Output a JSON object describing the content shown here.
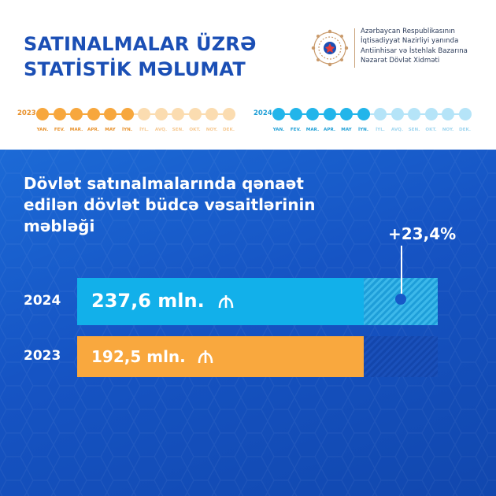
{
  "header": {
    "title_lines": [
      "SATINALMALAR ÜZRƏ",
      "STATİSTİK MƏLUMAT"
    ],
    "org_lines": [
      "Azərbaycan Respublikasının",
      "İqtisadiyyat Nazirliyi yanında",
      "Antiinhisar və İstehlak Bazarına",
      "Nəzarət Dövlət Xidməti"
    ]
  },
  "timelines": [
    {
      "year": "2023",
      "months": [
        "YAN.",
        "FEV.",
        "MAR.",
        "APR.",
        "MAY",
        "İYN.",
        "İYL.",
        "AVQ.",
        "SEN.",
        "OKT.",
        "NOY.",
        "DEK."
      ],
      "active_months": 6,
      "color_active": "#f7a73d",
      "color_inactive": "#fbdcb0",
      "text_active": "#e8912b",
      "text_inactive": "#f6c890"
    },
    {
      "year": "2024",
      "months": [
        "YAN.",
        "FEV.",
        "MAR.",
        "APR.",
        "MAY",
        "İYN.",
        "İYL.",
        "AVQ.",
        "SEN.",
        "OKT.",
        "NOY.",
        "DEK."
      ],
      "active_months": 6,
      "color_active": "#22b5ea",
      "color_inactive": "#b5e4f8",
      "text_active": "#1f9fd6",
      "text_inactive": "#9ed5ef"
    }
  ],
  "subtitle_lines": [
    "Dövlət satınalmalarında qənaət",
    "edilən dövlət büdcə vəsaitlərinin",
    "məbləği"
  ],
  "chart_data": {
    "type": "bar",
    "orientation": "horizontal",
    "unit": "mln. ₼",
    "categories": [
      "2024",
      "2023"
    ],
    "values": [
      237.6,
      192.5
    ],
    "value_labels": [
      "237,6 mln.",
      "192,5 mln."
    ],
    "change_label": "+23,4%",
    "colors": {
      "2024": "#12b0ea",
      "2023": "#f9a83e"
    },
    "title": "",
    "xlabel": "",
    "ylabel": "",
    "grid": false,
    "legend": "none"
  }
}
